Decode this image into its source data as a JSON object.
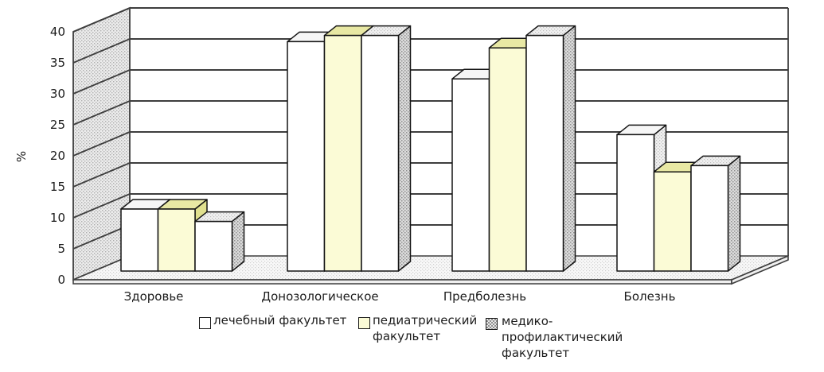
{
  "chart_data": {
    "type": "bar",
    "style": "3d-clustered",
    "title": "",
    "xlabel": "",
    "ylabel": "%",
    "categories": [
      "Здоровье",
      "Донозологическое",
      "Предболезнь",
      "Болезнь"
    ],
    "series": [
      {
        "name": "лечебный факультет",
        "values": [
          10,
          37,
          31,
          22
        ],
        "fill": "#ffffff"
      },
      {
        "name": "педиатрический факультет",
        "values": [
          10,
          38,
          36,
          16
        ],
        "fill": "#fbfbd6"
      },
      {
        "name": "медико-профилактический факультет",
        "values": [
          8,
          38,
          38,
          17
        ],
        "fill": "#ffffff",
        "side_pattern": "gray-dotted"
      }
    ],
    "ylim": [
      0,
      40
    ],
    "yticks": [
      "0",
      "5",
      "10",
      "15",
      "20",
      "25",
      "30",
      "35",
      "40"
    ],
    "grid": true,
    "legend_position": "bottom"
  },
  "legend": {
    "items": [
      {
        "label": "лечебный факультет",
        "lines": "лечебный факультет",
        "swatch": "white"
      },
      {
        "label": "педиатрический факультет",
        "lines": "педиатрический\nфакультет",
        "swatch": "yellow"
      },
      {
        "label": "медико-профилактический факультет",
        "lines": "медико-\nпрофилактический\nфакультет",
        "swatch": "gray-dotted"
      }
    ]
  },
  "colors": {
    "grid": "#3e3e3e",
    "text": "#1c1c1c",
    "bar_outline": "#141414",
    "yellow_front": "#fbfbd6",
    "yellow_top": "#e8e8a4",
    "white_top": "#f6f6f6",
    "slab": "#efefef"
  }
}
